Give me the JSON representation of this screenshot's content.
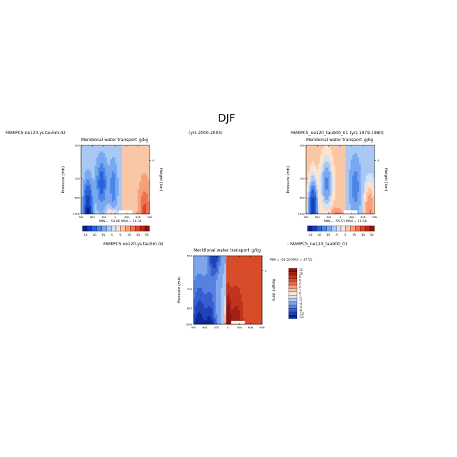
{
  "figure": {
    "title": "DJF",
    "panel_top_left": {
      "case": "FAMIPC5.ne120.ys.tau5m.02",
      "years": "(yrs 2000-2003)"
    },
    "panel_top_right": {
      "case": "FAMIPC5_ne120_tau900_01 (yrs 1979-1980)"
    },
    "panel_diff": {
      "case_a": "FAMIPC5.ne120.ys.tau5m.02",
      "case_b": "- FAMIPC5_ne120_tau900_01"
    }
  },
  "chart_data": [
    {
      "type": "heatmap",
      "title": "Meridional water transport",
      "units": "g/kg",
      "xlabel": "",
      "ylabel": "Pressure (mb)",
      "y2label": "Height (km)",
      "x_ticks": [
        "90S",
        "60S",
        "30S",
        "0",
        "30N",
        "60N",
        "90N"
      ],
      "y_ticks": [
        "500",
        "700",
        "850",
        "1000"
      ],
      "y2_ticks": [
        "4"
      ],
      "stats": "MIN = -54.06   MAX = 14.31",
      "min": -54.06,
      "max": 14.31,
      "colorbar_labels": [
        "-50",
        "-30",
        "-15",
        "-5",
        "5",
        "15",
        "30",
        "50"
      ]
    },
    {
      "type": "heatmap",
      "title": "Meridional water transport",
      "units": "g/kg",
      "xlabel": "",
      "ylabel": "Pressure (mb)",
      "y2label": "Height (km)",
      "x_ticks": [
        "90S",
        "60S",
        "30S",
        "0",
        "30N",
        "60N",
        "90N"
      ],
      "y_ticks": [
        "500",
        "700",
        "850",
        "1000"
      ],
      "y2_ticks": [
        "4"
      ],
      "stats": "MIN = -55.51   MAX = 15.58",
      "min": -55.51,
      "max": 15.58,
      "colorbar_labels": [
        "-50",
        "-30",
        "-15",
        "-5",
        "5",
        "15",
        "30",
        "50"
      ]
    },
    {
      "type": "heatmap",
      "title": "Meridional water transport",
      "units": "g/kg",
      "xlabel": "",
      "ylabel": "Pressure (mb)",
      "y2label": "Height (km)",
      "x_ticks": [
        "90S",
        "60S",
        "30S",
        "0",
        "30N",
        "60N",
        "90N"
      ],
      "y_ticks": [
        "500",
        "700",
        "850",
        "1000"
      ],
      "y2_ticks": [
        "4"
      ],
      "stats": "MIN = -54.50   MAX = 37.55",
      "min": -54.5,
      "max": 37.55,
      "colorbar_labels": [
        "12",
        "10",
        "8",
        "6",
        "4",
        "2",
        "1",
        "0",
        "-1",
        "-2",
        "-4",
        "-6",
        "-8",
        "-10",
        "-12"
      ]
    }
  ],
  "colors": {
    "seq_main": [
      "#0a1f8c",
      "#1640b8",
      "#2b63d8",
      "#4a86e8",
      "#79a8ef",
      "#a9c8f4",
      "#d2e2f8",
      "#fbe4d0",
      "#f9c7a6",
      "#f5a07a",
      "#ec7252",
      "#d84830",
      "#b92a18",
      "#8a1410"
    ],
    "seq_diff": [
      "#8a1410",
      "#a61e14",
      "#c0341c",
      "#d94c2a",
      "#ec7350",
      "#f59a78",
      "#f9c2a4",
      "#fbe2d2",
      "#d6e4f8",
      "#abc8f2",
      "#7fa6ec",
      "#5681e0",
      "#3660d0",
      "#1f42b8",
      "#0f2896"
    ]
  }
}
